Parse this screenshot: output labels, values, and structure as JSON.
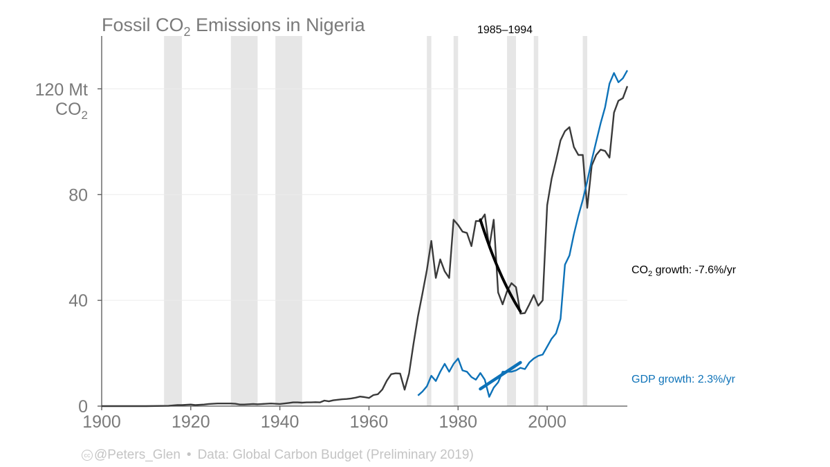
{
  "chart_data": {
    "type": "line",
    "title_parts": {
      "prefix": "Fossil CO",
      "sub": "2",
      "suffix": " Emissions in Nigeria"
    },
    "x_ticks": [
      1900,
      1920,
      1940,
      1960,
      1980,
      2000
    ],
    "y_ticks": [
      0,
      40,
      80
    ],
    "y_top_tick": {
      "value": 120,
      "line1": "120 Mt",
      "line2_prefix": "CO",
      "line2_sub": "2"
    },
    "xlim": [
      1900,
      2018
    ],
    "ylim": [
      0,
      140
    ],
    "recession_periods": [
      [
        1914,
        1918
      ],
      [
        1929,
        1935
      ],
      [
        1939,
        1945
      ],
      [
        1973,
        1974
      ],
      [
        1979,
        1980
      ],
      [
        1991,
        1993
      ],
      [
        1997,
        1998
      ],
      [
        2008,
        2009
      ]
    ],
    "highlight_label": "1985–1994",
    "highlight_period": [
      1985,
      1994
    ],
    "co2_growth_label": {
      "prefix": "CO",
      "sub": "2",
      "suffix": " growth: -7.6%/yr"
    },
    "gdp_growth_label": "GDP growth: 2.3%/yr",
    "colors": {
      "co2": "#3a3a3a",
      "gdp": "#0d72b8",
      "trend": "#000000",
      "band": "#e6e6e6",
      "grid": "#ececec",
      "axis": "#555555"
    },
    "series": [
      {
        "name": "CO2 emissions",
        "x": [
          1900,
          1905,
          1910,
          1915,
          1917,
          1918,
          1919,
          1920,
          1921,
          1922,
          1923,
          1924,
          1925,
          1926,
          1927,
          1928,
          1929,
          1930,
          1931,
          1932,
          1933,
          1934,
          1935,
          1936,
          1937,
          1938,
          1939,
          1940,
          1941,
          1942,
          1943,
          1944,
          1945,
          1946,
          1947,
          1948,
          1949,
          1950,
          1951,
          1952,
          1953,
          1954,
          1955,
          1956,
          1957,
          1958,
          1959,
          1960,
          1961,
          1962,
          1963,
          1964,
          1965,
          1966,
          1967,
          1968,
          1969,
          1970,
          1971,
          1972,
          1973,
          1974,
          1975,
          1976,
          1977,
          1978,
          1979,
          1980,
          1981,
          1982,
          1983,
          1984,
          1985,
          1986,
          1987,
          1988,
          1989,
          1990,
          1991,
          1992,
          1993,
          1994,
          1995,
          1996,
          1997,
          1998,
          1999,
          2000,
          2001,
          2002,
          2003,
          2004,
          2005,
          2006,
          2007,
          2008,
          2009,
          2010,
          2011,
          2012,
          2013,
          2014,
          2015,
          2016,
          2017,
          2018
        ],
        "values": [
          0,
          0,
          0,
          0.1,
          0.4,
          0.4,
          0.5,
          0.6,
          0.4,
          0.5,
          0.6,
          0.8,
          0.9,
          1.0,
          1.0,
          1.0,
          1.0,
          0.9,
          0.6,
          0.6,
          0.7,
          0.8,
          0.7,
          0.8,
          0.9,
          1.0,
          0.9,
          0.8,
          1.0,
          1.2,
          1.4,
          1.4,
          1.3,
          1.4,
          1.4,
          1.5,
          1.4,
          2.1,
          1.8,
          2.2,
          2.4,
          2.6,
          2.7,
          2.9,
          3.2,
          3.6,
          3.4,
          3.1,
          4.2,
          4.5,
          6.3,
          9.6,
          12.1,
          12.4,
          12.3,
          6.2,
          12.3,
          23.5,
          34.0,
          42.5,
          51.5,
          62.5,
          48.5,
          55.5,
          51.0,
          48.5,
          70.5,
          68.5,
          66.0,
          65.5,
          60.5,
          70.0,
          70.0,
          72.5,
          60.0,
          70.5,
          43.0,
          38.5,
          43.5,
          46.5,
          45.0,
          35.0,
          35.2,
          38.5,
          42.0,
          38.0,
          40.0,
          76.0,
          86.0,
          93.0,
          100.5,
          104.0,
          105.5,
          98.0,
          95.0,
          95.0,
          75.0,
          91.0,
          95.0,
          97.0,
          96.5,
          94.0,
          111.0,
          115.5,
          116.5,
          121.0
        ]
      },
      {
        "name": "GDP",
        "x": [
          1971,
          1972,
          1973,
          1974,
          1975,
          1976,
          1977,
          1978,
          1979,
          1980,
          1981,
          1982,
          1983,
          1984,
          1985,
          1986,
          1987,
          1988,
          1989,
          1990,
          1991,
          1992,
          1993,
          1994,
          1995,
          1996,
          1997,
          1998,
          1999,
          2000,
          2001,
          2002,
          2003,
          2004,
          2005,
          2006,
          2007,
          2008,
          2009,
          2010,
          2011,
          2012,
          2013,
          2014,
          2015,
          2016,
          2017,
          2018
        ],
        "values": [
          4.0,
          5.5,
          7.5,
          11.5,
          9.5,
          13.0,
          16.0,
          13.0,
          16.0,
          18.0,
          13.5,
          13.0,
          11.0,
          10.0,
          12.5,
          10.0,
          3.5,
          7.0,
          9.0,
          13.0,
          13.0,
          13.0,
          13.5,
          14.5,
          14.0,
          16.5,
          18.0,
          19.0,
          19.5,
          22.5,
          25.5,
          27.5,
          33.0,
          53.5,
          57.0,
          65.0,
          72.0,
          78.0,
          85.0,
          93.0,
          100.0,
          107.0,
          113.0,
          122.0,
          126.0,
          122.5,
          124.0,
          127.0
        ]
      }
    ],
    "trend_lines": [
      {
        "name": "CO2 trend 1985–1994",
        "x": [
          1985,
          1994
        ],
        "y": [
          70.5,
          35.8
        ],
        "curve": "exponential"
      },
      {
        "name": "GDP trend 1985–1994",
        "x": [
          1985,
          1994
        ],
        "y": [
          6.5,
          16.5
        ],
        "curve": "linear"
      }
    ]
  },
  "footer": {
    "cc_glyph": "cc",
    "handle": "@Peters_Glen",
    "separator": "•",
    "source": "Data: Global Carbon Budget (Preliminary 2019)"
  }
}
